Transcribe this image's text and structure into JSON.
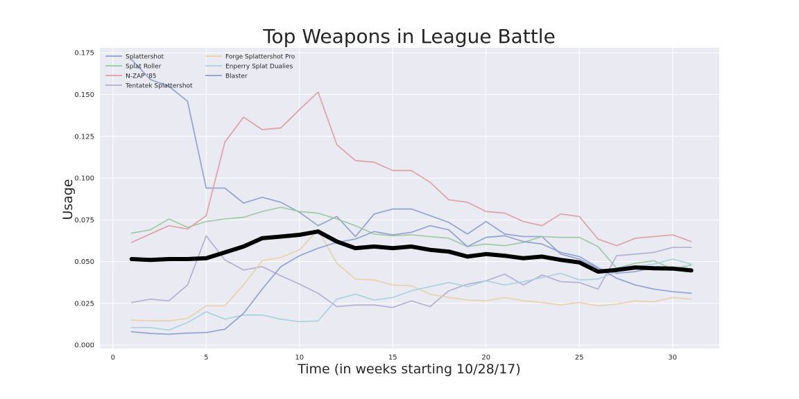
{
  "chart_data": {
    "type": "line",
    "title": "Top Weapons in League Battle",
    "xlabel": "Time (in weeks starting 10/28/17)",
    "ylabel": "Usage",
    "xlim": [
      -0.7,
      32.5
    ],
    "ylim": [
      -0.002,
      0.178
    ],
    "xticks": [
      0,
      5,
      10,
      15,
      20,
      25,
      30
    ],
    "yticks": [
      0.0,
      0.025,
      0.05,
      0.075,
      0.1,
      0.125,
      0.15,
      0.175
    ],
    "ytick_labels": [
      "0.000",
      "0.025",
      "0.050",
      "0.075",
      "0.100",
      "0.125",
      "0.150",
      "0.175"
    ],
    "grid": true,
    "legend_position": "top-left",
    "x": [
      1,
      2,
      3,
      4,
      5,
      6,
      7,
      8,
      9,
      10,
      11,
      12,
      13,
      14,
      15,
      16,
      17,
      18,
      19,
      20,
      21,
      22,
      23,
      24,
      25,
      26,
      27,
      28,
      29,
      30,
      31
    ],
    "series": [
      {
        "name": "Splattershot",
        "color": "#8c9fce",
        "values": [
          0.171,
          0.159,
          0.155,
          0.146,
          0.094,
          0.094,
          0.085,
          0.0885,
          0.0855,
          0.0795,
          0.0715,
          0.077,
          0.065,
          0.0785,
          0.0815,
          0.0815,
          0.0775,
          0.0735,
          0.0665,
          0.074,
          0.0665,
          0.065,
          0.065,
          0.0545,
          0.0515,
          0.046,
          0.043,
          0.044,
          0.0465,
          0.046,
          0.044
        ]
      },
      {
        "name": "Splat Roller",
        "color": "#9bc8a0",
        "values": [
          0.067,
          0.069,
          0.0755,
          0.0705,
          0.074,
          0.0755,
          0.0765,
          0.08,
          0.0825,
          0.08,
          0.079,
          0.0755,
          0.0715,
          0.0665,
          0.0655,
          0.066,
          0.065,
          0.064,
          0.059,
          0.0605,
          0.0595,
          0.0615,
          0.065,
          0.0645,
          0.0645,
          0.059,
          0.046,
          0.049,
          0.0505,
          0.0455,
          0.048
        ]
      },
      {
        "name": "N-ZAP '85",
        "color": "#dc9ea0",
        "values": [
          0.0615,
          0.0665,
          0.0715,
          0.0695,
          0.0775,
          0.1215,
          0.1365,
          0.129,
          0.13,
          0.141,
          0.1515,
          0.12,
          0.1105,
          0.1095,
          0.1045,
          0.1045,
          0.0975,
          0.087,
          0.0855,
          0.08,
          0.079,
          0.074,
          0.0715,
          0.0785,
          0.077,
          0.0635,
          0.0595,
          0.064,
          0.065,
          0.066,
          0.062
        ]
      },
      {
        "name": "Tentatek Splattershot",
        "color": "#b4abd3",
        "values": [
          0.0255,
          0.0275,
          0.0265,
          0.036,
          0.0655,
          0.051,
          0.045,
          0.047,
          0.0415,
          0.0365,
          0.031,
          0.023,
          0.024,
          0.024,
          0.0225,
          0.0265,
          0.023,
          0.0325,
          0.0365,
          0.0385,
          0.0425,
          0.036,
          0.042,
          0.038,
          0.0375,
          0.0335,
          0.0535,
          0.0545,
          0.0555,
          0.0585,
          0.0585
        ]
      },
      {
        "name": "Forge Splattershot Pro",
        "color": "#e6d2aa",
        "values": [
          0.015,
          0.0145,
          0.0145,
          0.016,
          0.0235,
          0.0235,
          0.036,
          0.0505,
          0.0525,
          0.057,
          0.069,
          0.049,
          0.0395,
          0.039,
          0.036,
          0.0355,
          0.0305,
          0.0285,
          0.027,
          0.0265,
          0.0285,
          0.0265,
          0.0255,
          0.024,
          0.0255,
          0.0235,
          0.0245,
          0.0265,
          0.026,
          0.0285,
          0.0275
        ]
      },
      {
        "name": "Enperry Splat Dualies",
        "color": "#a6d0e0",
        "values": [
          0.0105,
          0.0105,
          0.009,
          0.0135,
          0.02,
          0.0155,
          0.018,
          0.018,
          0.0155,
          0.014,
          0.0145,
          0.0275,
          0.0305,
          0.027,
          0.0285,
          0.0325,
          0.035,
          0.0375,
          0.035,
          0.0385,
          0.036,
          0.038,
          0.0405,
          0.043,
          0.039,
          0.0395,
          0.044,
          0.047,
          0.0485,
          0.0515,
          0.0485
        ]
      },
      {
        "name": "Blaster",
        "color": "#8c9fce",
        "values": [
          0.008,
          0.007,
          0.0065,
          0.0072,
          0.0075,
          0.0095,
          0.019,
          0.0335,
          0.047,
          0.0535,
          0.058,
          0.0615,
          0.0635,
          0.068,
          0.066,
          0.0675,
          0.0715,
          0.069,
          0.059,
          0.0645,
          0.0655,
          0.062,
          0.0605,
          0.0555,
          0.053,
          0.0465,
          0.04,
          0.036,
          0.0335,
          0.032,
          0.031
        ]
      },
      {
        "name": "",
        "color": "#000000",
        "thick": true,
        "values": [
          0.0515,
          0.051,
          0.0515,
          0.0515,
          0.052,
          0.0555,
          0.059,
          0.064,
          0.065,
          0.066,
          0.068,
          0.062,
          0.058,
          0.059,
          0.058,
          0.059,
          0.057,
          0.056,
          0.053,
          0.0545,
          0.0535,
          0.052,
          0.053,
          0.051,
          0.0495,
          0.044,
          0.045,
          0.0465,
          0.046,
          0.0458,
          0.0447
        ]
      }
    ]
  }
}
